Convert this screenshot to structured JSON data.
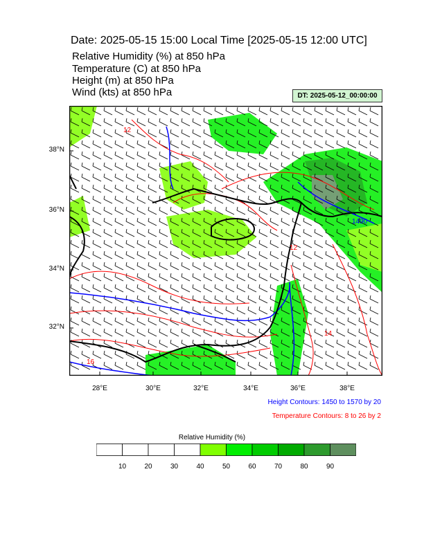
{
  "header": {
    "title": "Date: 2025-05-15  15:00 Local Time [2025-05-15  12:00 UTC]",
    "lines": [
      "Relative Humidity   (%)     at   850 hPa",
      "Temperature   (C)     at   850 hPa",
      "Height   (m)     at   850 hPa",
      "Wind   (kts)     at   850 hPa"
    ],
    "dt_label": "DT: 2025-05-12_00:00:00"
  },
  "map": {
    "lat_labels": [
      "38°N",
      "36°N",
      "34°N",
      "32°N"
    ],
    "lon_labels": [
      "28°E",
      "30°E",
      "32°E",
      "34°E",
      "36°E",
      "38°E"
    ],
    "contour_labels": {
      "height": [
        "1490"
      ],
      "temperature": [
        "12",
        "12",
        "14",
        "16"
      ]
    },
    "colors": {
      "height": "#0000ff",
      "temperature": "#ff0000",
      "coast": "#000000"
    }
  },
  "legend": {
    "height_text": "Height Contours: 1450 to 1570 by 20",
    "temp_text": "Temperature Contours: 8 to 26 by 2"
  },
  "colorbar": {
    "title": "Relative Humidity   (%)",
    "labels": [
      "10",
      "20",
      "30",
      "40",
      "50",
      "60",
      "70",
      "80",
      "90"
    ],
    "colors": [
      "#ffffff",
      "#ffffff",
      "#ffffff",
      "#ffffff",
      "#80ff00",
      "#00ee00",
      "#00cc00",
      "#00aa00",
      "#2d9a2d",
      "#5e8f5e"
    ]
  }
}
